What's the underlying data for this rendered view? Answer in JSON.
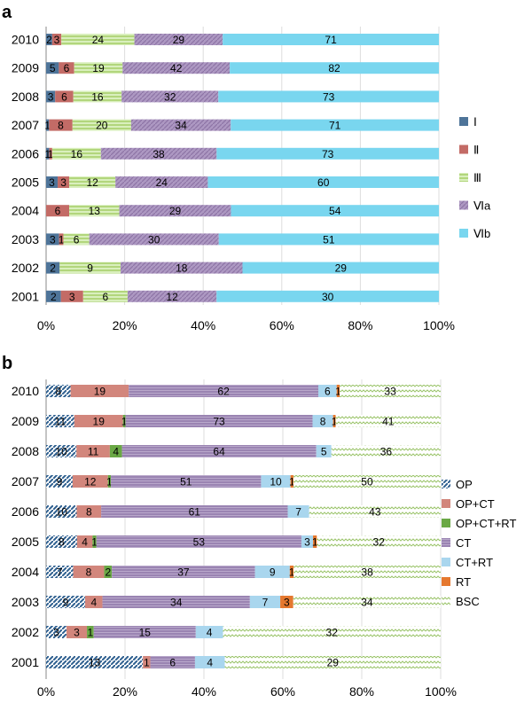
{
  "chart_data": [
    {
      "panel_label": "a",
      "type": "bar",
      "orientation": "horizontal",
      "stacking": "percent",
      "categories": [
        "2010",
        "2009",
        "2008",
        "2007",
        "2006",
        "2005",
        "2004",
        "2003",
        "2002",
        "2001"
      ],
      "series": [
        {
          "name": "Ⅰ",
          "color": "#4e7499",
          "pattern": "solid",
          "values": [
            2,
            5,
            3,
            1,
            1,
            3,
            0,
            3,
            2,
            2
          ]
        },
        {
          "name": "Ⅱ",
          "color": "#c36b66",
          "pattern": "solid",
          "values": [
            3,
            6,
            6,
            8,
            1,
            3,
            6,
            1,
            0,
            3
          ]
        },
        {
          "name": "Ⅲ",
          "color": "#b4d97a",
          "pattern": "hlines",
          "values": [
            24,
            19,
            16,
            20,
            16,
            12,
            13,
            6,
            9,
            6
          ]
        },
        {
          "name": "Ⅵa",
          "color": "#a38cb8",
          "pattern": "dlines",
          "values": [
            29,
            42,
            32,
            34,
            38,
            24,
            29,
            30,
            18,
            12
          ]
        },
        {
          "name": "Ⅵb",
          "color": "#79d6ef",
          "pattern": "solid",
          "values": [
            71,
            82,
            73,
            71,
            73,
            60,
            54,
            51,
            29,
            30
          ]
        }
      ],
      "x_ticks": [
        "0%",
        "20%",
        "40%",
        "60%",
        "80%",
        "100%"
      ],
      "xlim": [
        0,
        100
      ],
      "legend": "right"
    },
    {
      "panel_label": "b",
      "type": "bar",
      "orientation": "horizontal",
      "stacking": "percent",
      "categories": [
        "2010",
        "2009",
        "2008",
        "2007",
        "2006",
        "2005",
        "2004",
        "2003",
        "2002",
        "2001"
      ],
      "series": [
        {
          "name": "OP",
          "color": "#2e5f8f",
          "pattern": "diag",
          "values": [
            8,
            11,
            10,
            9,
            10,
            8,
            7,
            9,
            3,
            13
          ]
        },
        {
          "name": "OP+CT",
          "color": "#d2867c",
          "pattern": "solid",
          "values": [
            19,
            19,
            11,
            12,
            8,
            4,
            8,
            4,
            3,
            1
          ]
        },
        {
          "name": "OP+CT+RT",
          "color": "#6aa845",
          "pattern": "solid",
          "values": [
            0,
            1,
            4,
            1,
            0,
            1,
            2,
            0,
            1,
            0
          ]
        },
        {
          "name": "CT",
          "color": "#9d86b3",
          "pattern": "hlines",
          "values": [
            62,
            73,
            64,
            51,
            61,
            53,
            37,
            34,
            15,
            6
          ]
        },
        {
          "name": "CT+RT",
          "color": "#a9d6ee",
          "pattern": "solid",
          "values": [
            6,
            8,
            5,
            10,
            7,
            3,
            9,
            7,
            4,
            4
          ]
        },
        {
          "name": "RT",
          "color": "#e5782f",
          "pattern": "solid",
          "values": [
            1,
            1,
            0,
            1,
            0,
            1,
            1,
            3,
            0,
            0
          ]
        },
        {
          "name": "BSC",
          "color": "#d4e8b5",
          "pattern": "zigzag",
          "values": [
            33,
            41,
            36,
            50,
            43,
            32,
            38,
            34,
            32,
            29
          ]
        }
      ],
      "x_ticks": [
        "0%",
        "20%",
        "40%",
        "60%",
        "80%",
        "100%"
      ],
      "xlim": [
        0,
        100
      ],
      "legend": "right"
    }
  ]
}
